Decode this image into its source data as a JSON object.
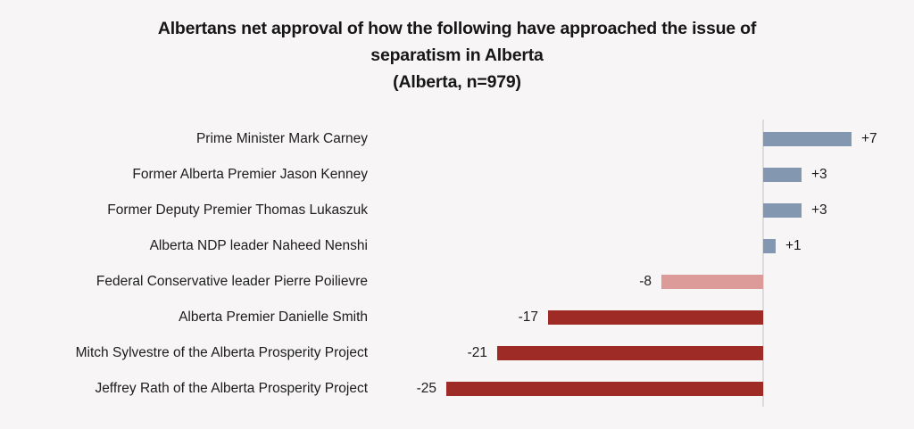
{
  "page": {
    "background_color": "#f7f5f5",
    "axis_line_color": "#dcdcdc"
  },
  "chart_data": {
    "type": "bar",
    "orientation": "horizontal",
    "title_lines": [
      "Albertans net approval of how the following have approached the issue of",
      "separatism in Alberta",
      "(Alberta, n=979)"
    ],
    "title": "Albertans net approval of how the following have approached the issue of separatism in Alberta (Alberta, n=979)",
    "categories": [
      "Prime Minister Mark Carney",
      "Former Alberta Premier Jason Kenney",
      "Former Deputy Premier Thomas Lukaszuk",
      "Alberta NDP leader Naheed Nenshi",
      "Federal Conservative leader Pierre Poilievre",
      "Alberta Premier Danielle Smith",
      "Mitch Sylvestre of the Alberta Prosperity Project",
      "Jeffrey Rath of the Alberta Prosperity Project"
    ],
    "values": [
      7,
      3,
      3,
      1,
      -8,
      -17,
      -21,
      -25
    ],
    "value_labels": [
      "+7",
      "+3",
      "+3",
      "+1",
      "-8",
      "-17",
      "-21",
      "-25"
    ],
    "bar_colors": [
      "#8497B0",
      "#8497B0",
      "#8497B0",
      "#8497B0",
      "#DC9B98",
      "#9E2B25",
      "#9E2B25",
      "#9E2B25"
    ],
    "colors": {
      "positive": "#8497B0",
      "negative_light": "#DC9B98",
      "negative_dark": "#9E2B25"
    },
    "xlabel": "",
    "ylabel": "",
    "xlim": [
      -30,
      12
    ],
    "grid": false,
    "legend": false,
    "data_labels": true
  }
}
